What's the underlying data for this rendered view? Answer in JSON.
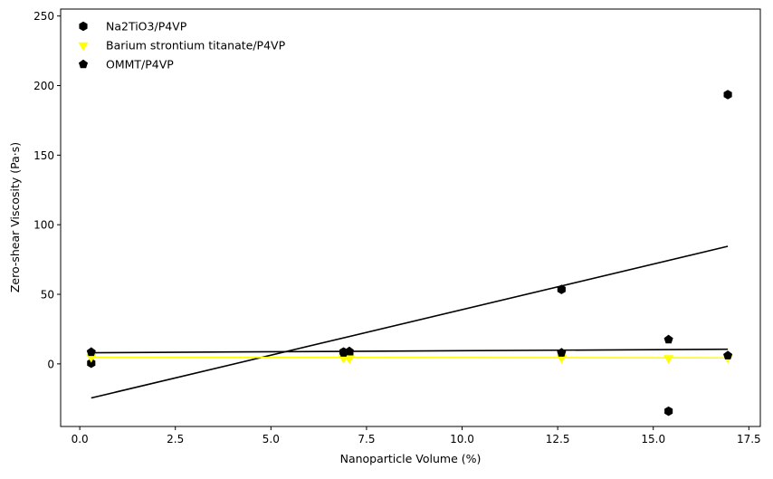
{
  "chart_data": {
    "type": "scatter",
    "title": "",
    "xlabel": "Nanoparticle Volume (%)",
    "ylabel": "Zero-shear Viscosity (Pa·s)",
    "xlim": [
      -0.5,
      17.8
    ],
    "ylim": [
      -45,
      255
    ],
    "x_ticks": [
      0.0,
      2.5,
      5.0,
      7.5,
      10.0,
      12.5,
      15.0,
      17.5
    ],
    "x_tick_labels": [
      "0.0",
      "2.5",
      "5.0",
      "7.5",
      "10.0",
      "12.5",
      "15.0",
      "17.5"
    ],
    "y_ticks": [
      0,
      50,
      100,
      150,
      200,
      250
    ],
    "y_tick_labels": [
      "0",
      "50",
      "100",
      "150",
      "200",
      "250"
    ],
    "legend_position": "top-left",
    "series": [
      {
        "name": "Na2TiO3/P4VP",
        "marker": "hexagon",
        "color": "#000000",
        "x": [
          0.3,
          6.9,
          7.05,
          12.6,
          15.4,
          16.95
        ],
        "y": [
          0.5,
          8.5,
          8.0,
          53.5,
          -34.0,
          193.5
        ],
        "fit": {
          "x0": 0.3,
          "y0": -24.5,
          "x1": 16.95,
          "y1": 84.5
        }
      },
      {
        "name": "Barium strontium titanate/P4VP",
        "marker": "triangle-down",
        "color": "#ffff00",
        "x": [
          0.3,
          6.9,
          7.05,
          12.6,
          15.4,
          16.95
        ],
        "y": [
          5.0,
          4.2,
          4.0,
          4.5,
          4.2,
          4.5
        ],
        "fit": {
          "x0": 0.3,
          "y0": 4.8,
          "x1": 16.95,
          "y1": 4.3
        }
      },
      {
        "name": "OMMT/P4VP",
        "marker": "pentagon",
        "color": "#000000",
        "x": [
          0.3,
          6.9,
          7.05,
          12.6,
          15.4,
          16.95
        ],
        "y": [
          8.5,
          8.0,
          9.0,
          8.0,
          17.5,
          6.0
        ],
        "fit": {
          "x0": 0.3,
          "y0": 8.0,
          "x1": 16.95,
          "y1": 10.5
        }
      }
    ]
  }
}
